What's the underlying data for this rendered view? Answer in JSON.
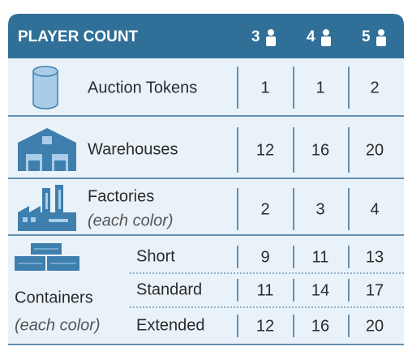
{
  "header": {
    "title": "PLAYER COUNT",
    "players": [
      "3",
      "4",
      "5"
    ]
  },
  "rows": [
    {
      "label": "Auction Tokens",
      "values": [
        1,
        1,
        2
      ]
    },
    {
      "label": "Warehouses",
      "values": [
        12,
        16,
        20
      ]
    },
    {
      "label": "Factories",
      "note": "(each color)",
      "values": [
        2,
        3,
        4
      ]
    }
  ],
  "containers": {
    "label": "Containers",
    "note": "(each color)",
    "rows": [
      {
        "label": "Short",
        "values": [
          9,
          11,
          13
        ]
      },
      {
        "label": "Standard",
        "values": [
          11,
          14,
          17
        ]
      },
      {
        "label": "Extended",
        "values": [
          12,
          16,
          20
        ]
      }
    ]
  }
}
